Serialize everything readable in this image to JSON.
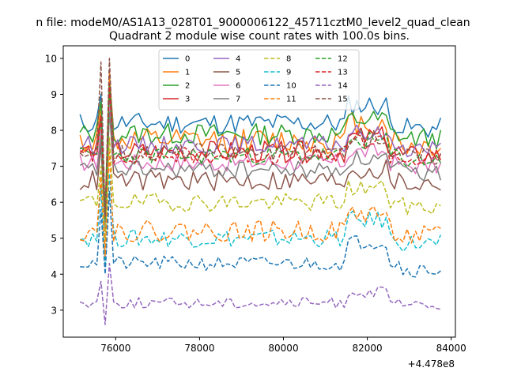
{
  "chart_data": {
    "type": "line",
    "suptitle": "n file: modeM0/AS1A13_028T01_9000006122_45711cztM0_level2_quad_clean",
    "title": "Quadrant 2 module wise count rates with 100.0s bins.",
    "xlabel": "",
    "ylabel": "",
    "x_offset_label": "+4.478e8",
    "xlim": [
      74750,
      84100
    ],
    "ylim": [
      2.25,
      10.35
    ],
    "xticks": [
      76000,
      78000,
      80000,
      82000,
      84000
    ],
    "xtick_labels": [
      "76000",
      "78000",
      "80000",
      "82000",
      "84000"
    ],
    "yticks": [
      3,
      4,
      5,
      6,
      7,
      8,
      9,
      10
    ],
    "ytick_labels": [
      "3",
      "4",
      "5",
      "6",
      "7",
      "8",
      "9",
      "10"
    ],
    "grid": false,
    "legend_position": "top-center",
    "x_start": 75150,
    "x_end": 83750,
    "x_step": 100,
    "spike_x": [
      75650,
      75850
    ],
    "series": [
      {
        "name": "0",
        "color": "#1f77b4",
        "dashed": false,
        "base": 8.2,
        "noise": 0.3,
        "amp": 0.5,
        "spike": [
          9.0,
          9.4,
          5.6
        ],
        "seed": 11
      },
      {
        "name": "1",
        "color": "#ff7f0e",
        "dashed": false,
        "base": 7.7,
        "noise": 0.35,
        "amp": 0.5,
        "spike": [
          8.6,
          9.6,
          5.8
        ],
        "seed": 12
      },
      {
        "name": "2",
        "color": "#2ca02c",
        "dashed": false,
        "base": 7.9,
        "noise": 0.3,
        "amp": 0.4,
        "spike": [
          8.8,
          9.3,
          5.5
        ],
        "seed": 13
      },
      {
        "name": "3",
        "color": "#d62728",
        "dashed": false,
        "base": 7.4,
        "noise": 0.3,
        "amp": 0.4,
        "spike": [
          8.4,
          9.0,
          5.4
        ],
        "seed": 14
      },
      {
        "name": "4",
        "color": "#9467bd",
        "dashed": false,
        "base": 7.6,
        "noise": 0.25,
        "amp": 0.3,
        "spike": [
          8.3,
          8.9,
          5.6
        ],
        "seed": 15
      },
      {
        "name": "5",
        "color": "#8c564b",
        "dashed": false,
        "base": 6.6,
        "noise": 0.3,
        "amp": 0.3,
        "spike": [
          7.6,
          8.6,
          5.2
        ],
        "seed": 16
      },
      {
        "name": "6",
        "color": "#e377c2",
        "dashed": false,
        "base": 7.1,
        "noise": 0.25,
        "amp": 0.3,
        "spike": [
          8.0,
          8.7,
          5.4
        ],
        "seed": 17
      },
      {
        "name": "7",
        "color": "#7f7f7f",
        "dashed": false,
        "base": 6.9,
        "noise": 0.25,
        "amp": 0.3,
        "spike": [
          7.8,
          8.5,
          5.3
        ],
        "seed": 18
      },
      {
        "name": "8",
        "color": "#bcbd22",
        "dashed": true,
        "base": 6.0,
        "noise": 0.25,
        "amp": 0.4,
        "spike": [
          7.0,
          7.8,
          4.9
        ],
        "seed": 19
      },
      {
        "name": "9",
        "color": "#17becf",
        "dashed": true,
        "base": 5.0,
        "noise": 0.25,
        "amp": 0.5,
        "spike": [
          6.4,
          6.8,
          4.2
        ],
        "seed": 20
      },
      {
        "name": "10",
        "color": "#1f77b4",
        "dashed": true,
        "base": 4.3,
        "noise": 0.2,
        "amp": 0.6,
        "spike": [
          5.8,
          6.3,
          4.0
        ],
        "seed": 21
      },
      {
        "name": "11",
        "color": "#ff7f0e",
        "dashed": true,
        "base": 5.2,
        "noise": 0.3,
        "amp": 0.5,
        "spike": [
          6.7,
          7.4,
          4.5
        ],
        "seed": 22
      },
      {
        "name": "12",
        "color": "#2ca02c",
        "dashed": true,
        "base": 7.3,
        "noise": 0.25,
        "amp": 0.4,
        "spike": [
          8.3,
          9.2,
          5.5
        ],
        "seed": 23
      },
      {
        "name": "13",
        "color": "#d62728",
        "dashed": true,
        "base": 7.3,
        "noise": 0.25,
        "amp": 0.4,
        "spike": [
          8.4,
          9.3,
          5.6
        ],
        "seed": 24
      },
      {
        "name": "14",
        "color": "#9467bd",
        "dashed": true,
        "base": 3.2,
        "noise": 0.15,
        "amp": 0.3,
        "spike": [
          3.8,
          4.3,
          2.6
        ],
        "seed": 25
      },
      {
        "name": "15",
        "color": "#8c564b",
        "dashed": true,
        "base": 7.4,
        "noise": 0.25,
        "amp": 0.4,
        "spike": [
          9.9,
          10.0,
          5.6
        ],
        "seed": 26
      }
    ]
  }
}
